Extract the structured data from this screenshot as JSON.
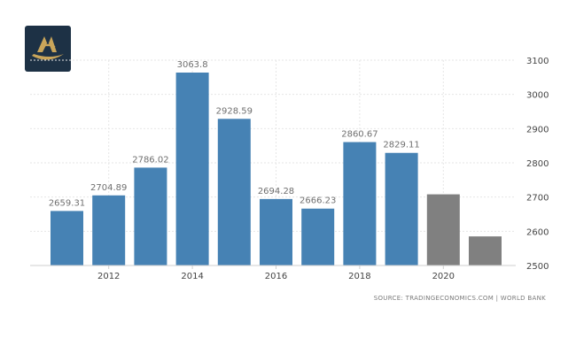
{
  "logo": {
    "name": "brand-logo",
    "colors": {
      "bg": "#1d3145",
      "gold": "#c9a55a"
    }
  },
  "source_text": "SOURCE: TRADINGECONOMICS.COM  |  WORLD BANK",
  "colors": {
    "historical": "#4682b4",
    "forecast": "#808080"
  },
  "chart_data": {
    "type": "bar",
    "title": "",
    "xlabel": "",
    "ylabel": "",
    "ylim": [
      2500,
      3100
    ],
    "y_axis_position": "right",
    "y_ticks": [
      2500,
      2600,
      2700,
      2800,
      2900,
      3000,
      3100
    ],
    "x_tick_labels": [
      "2012",
      "2014",
      "2016",
      "2018",
      "2020"
    ],
    "grid": true,
    "categories": [
      "2011",
      "2012",
      "2013",
      "2014",
      "2015",
      "2016",
      "2017",
      "2018",
      "2019",
      "2020",
      "2021"
    ],
    "values": [
      2659.31,
      2704.89,
      2786.02,
      3063.8,
      2928.59,
      2694.28,
      2666.23,
      2860.67,
      2829.11,
      2708,
      2585
    ],
    "data_labels": [
      "2659.31",
      "2704.89",
      "2786.02",
      "3063.8",
      "2928.59",
      "2694.28",
      "2666.23",
      "2860.67",
      "2829.11",
      "",
      ""
    ],
    "bar_kind": [
      "historical",
      "historical",
      "historical",
      "historical",
      "historical",
      "historical",
      "historical",
      "historical",
      "historical",
      "forecast",
      "forecast"
    ]
  }
}
